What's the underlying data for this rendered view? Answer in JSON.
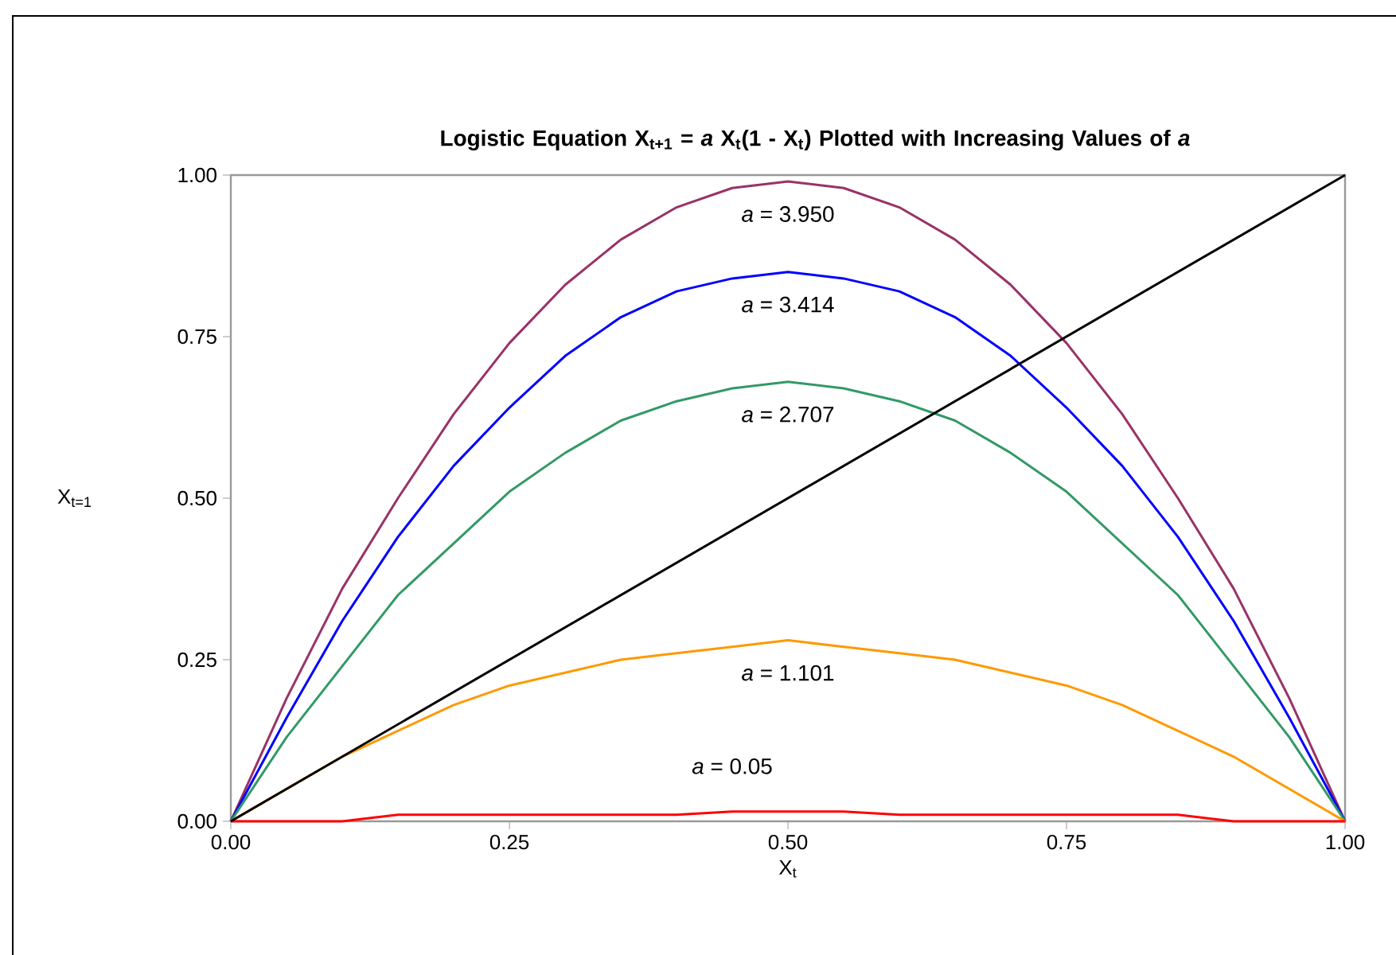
{
  "chart_data": {
    "type": "line",
    "title": "Logistic Equation X$_{t+1}$ = *a* X$_{t}$(1 - X$_{t}$) Plotted with Increasing Values of *a*",
    "xlabel": "X$_{t}$",
    "ylabel": "X$_{t=1}$",
    "x": [
      0,
      0.05,
      0.1,
      0.15,
      0.2,
      0.25,
      0.3,
      0.35,
      0.4,
      0.45,
      0.5,
      0.55,
      0.6,
      0.65,
      0.7,
      0.75,
      0.8,
      0.85,
      0.9,
      0.95,
      1
    ],
    "series": [
      {
        "name": "*a* = 3.950",
        "color": "#993366",
        "values": [
          0,
          0.19,
          0.36,
          0.5,
          0.63,
          0.74,
          0.83,
          0.9,
          0.95,
          0.98,
          0.99,
          0.98,
          0.95,
          0.9,
          0.83,
          0.74,
          0.63,
          0.5,
          0.36,
          0.19,
          0
        ]
      },
      {
        "name": "*a* = 3.414",
        "color": "#0000ff",
        "values": [
          0,
          0.16,
          0.31,
          0.44,
          0.55,
          0.64,
          0.72,
          0.78,
          0.82,
          0.84,
          0.85,
          0.84,
          0.82,
          0.78,
          0.72,
          0.64,
          0.55,
          0.44,
          0.31,
          0.16,
          0
        ]
      },
      {
        "name": "*a* = 2.707",
        "color": "#339966",
        "values": [
          0,
          0.13,
          0.24,
          0.35,
          0.43,
          0.51,
          0.57,
          0.62,
          0.65,
          0.67,
          0.68,
          0.67,
          0.65,
          0.62,
          0.57,
          0.51,
          0.43,
          0.35,
          0.24,
          0.13,
          0
        ]
      },
      {
        "name": "*a* = 1.101",
        "color": "#ff9900",
        "values": [
          0,
          0.05,
          0.1,
          0.14,
          0.18,
          0.21,
          0.23,
          0.25,
          0.26,
          0.27,
          0.28,
          0.27,
          0.26,
          0.25,
          0.23,
          0.21,
          0.18,
          0.14,
          0.1,
          0.05,
          0
        ]
      },
      {
        "name": "*a* = 0.05",
        "color": "#ff0000",
        "values": [
          0,
          0,
          0,
          0.01,
          0.01,
          0.01,
          0.01,
          0.01,
          0.01,
          0.015,
          0.015,
          0.015,
          0.01,
          0.01,
          0.01,
          0.01,
          0.01,
          0.01,
          0,
          0,
          0
        ]
      },
      {
        "type": "line",
        "color": "#000000",
        "x": [
          0,
          1
        ],
        "values": [
          0,
          1
        ]
      }
    ],
    "xlim": [
      0,
      1
    ],
    "ylim": [
      0,
      1
    ],
    "xticks": [
      {
        "value": 0,
        "label": "0.00"
      },
      {
        "value": 0.25,
        "label": "0.25"
      },
      {
        "value": 0.5,
        "label": "0.50"
      },
      {
        "value": 0.75,
        "label": "0.75"
      },
      {
        "value": 1,
        "label": "1.00"
      }
    ],
    "yticks": [
      {
        "value": 0,
        "label": "0.00"
      },
      {
        "value": 0.25,
        "label": "0.25"
      },
      {
        "value": 0.5,
        "label": "0.50"
      },
      {
        "value": 0.75,
        "label": "0.75"
      },
      {
        "value": 1,
        "label": "1.00"
      }
    ],
    "grid": false,
    "marker": "none",
    "line_style": "solid"
  }
}
